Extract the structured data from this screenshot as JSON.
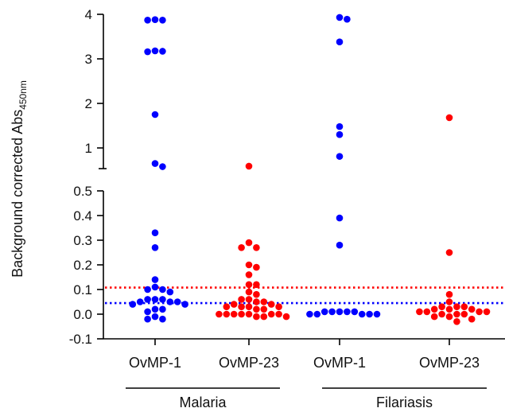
{
  "chart_data": {
    "type": "scatter",
    "ylabel": "Background corrected Abs",
    "ylabel_subscript": "450nm",
    "y_axis": "broken",
    "upper_segment": {
      "ylim": [
        0.5,
        4
      ],
      "ticks": [
        "4",
        "3",
        "2",
        "1"
      ],
      "tick_values": [
        4,
        3,
        2,
        1
      ]
    },
    "lower_segment": {
      "ylim": [
        -0.1,
        0.5
      ],
      "ticks": [
        "0.5",
        "0.4",
        "0.3",
        "0.2",
        "0.1",
        "0.0",
        "-0.1"
      ],
      "tick_values": [
        0.5,
        0.4,
        0.3,
        0.2,
        0.1,
        0.0,
        -0.1
      ]
    },
    "categories": [
      "OvMP-1",
      "OvMP-23",
      "OvMP-1",
      "OvMP-23"
    ],
    "groups": [
      {
        "label": "Malaria",
        "categories": [
          0,
          1
        ]
      },
      {
        "label": "Filariasis",
        "categories": [
          2,
          3
        ]
      }
    ],
    "colors": {
      "OvMP-1": "#0000ff",
      "OvMP-23": "#ff0000"
    },
    "cutoffs": [
      {
        "value": 0.108,
        "color": "#ff0000",
        "style": "dotted"
      },
      {
        "value": 0.045,
        "color": "#0000ff",
        "style": "dotted"
      }
    ],
    "series": [
      {
        "category_index": 0,
        "color": "#0000ff",
        "values": [
          3.87,
          3.87,
          3.88,
          3.18,
          3.16,
          3.17,
          1.75,
          0.65,
          0.58,
          0.33,
          0.27,
          0.14,
          0.11,
          0.1,
          0.1,
          0.09,
          0.06,
          0.06,
          0.06,
          0.05,
          0.05,
          0.05,
          0.04,
          0.04,
          0.02,
          0.02,
          0.01,
          -0.01,
          -0.02,
          -0.02
        ]
      },
      {
        "category_index": 1,
        "color": "#ff0000",
        "values": [
          0.59,
          0.29,
          0.27,
          0.27,
          0.2,
          0.19,
          0.16,
          0.12,
          0.12,
          0.09,
          0.08,
          0.06,
          0.06,
          0.05,
          0.05,
          0.04,
          0.04,
          0.03,
          0.03,
          0.03,
          0.03,
          0.02,
          0.02,
          0.0,
          0.0,
          0.0,
          0.0,
          0.0,
          0.0,
          0.0,
          -0.01,
          -0.01,
          -0.01
        ]
      },
      {
        "category_index": 2,
        "color": "#0000ff",
        "values": [
          3.93,
          3.89,
          3.38,
          1.48,
          1.3,
          0.81,
          0.39,
          0.28,
          0.01,
          0.01,
          0.01,
          0.0,
          0.0,
          0.0,
          0.0,
          0.0,
          0.01,
          0.01
        ]
      },
      {
        "category_index": 3,
        "color": "#ff0000",
        "values": [
          1.68,
          0.25,
          0.08,
          0.05,
          0.03,
          0.03,
          0.03,
          0.02,
          0.02,
          0.02,
          0.01,
          0.01,
          0.01,
          0.01,
          0.0,
          0.0,
          0.0,
          -0.01,
          -0.01,
          -0.02,
          -0.03
        ]
      }
    ]
  }
}
